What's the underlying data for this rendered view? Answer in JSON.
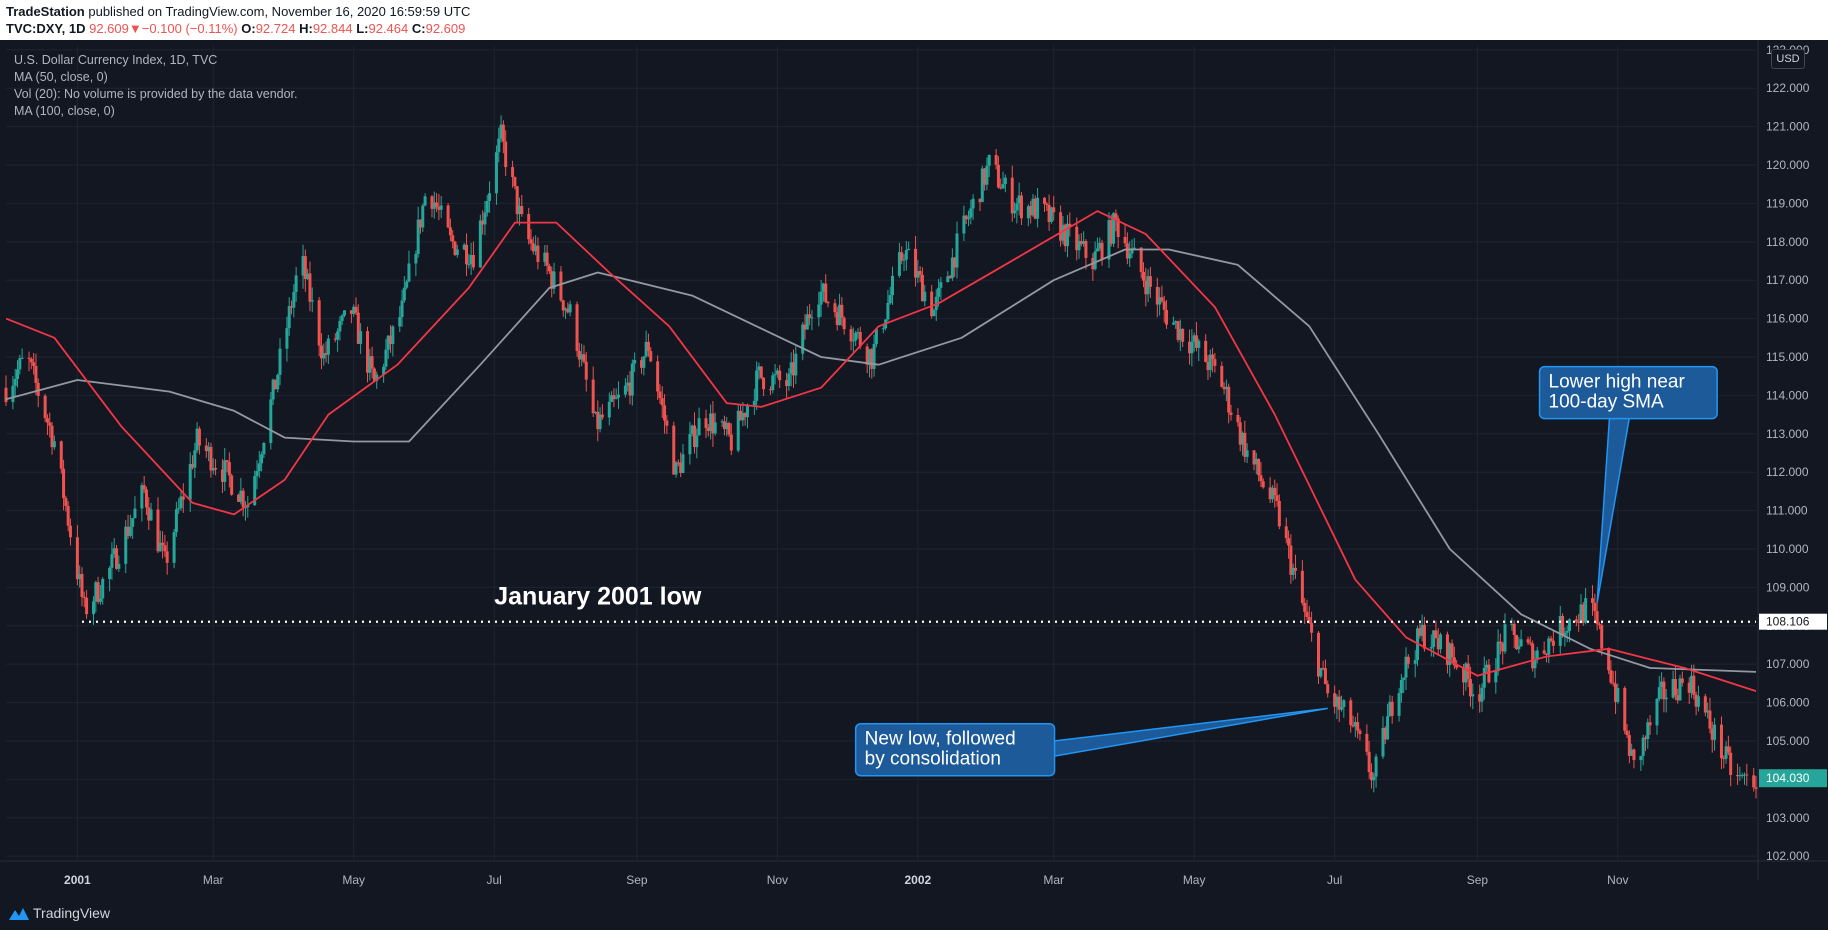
{
  "header": {
    "publisher": "TradeStation",
    "published_text": " published on TradingView.com, November 16, 2020 16:59:59 UTC",
    "symbol": "TVC:DXY, 1D",
    "last": "92.609",
    "change": "−0.100 (−0.11%)",
    "o_label": "O:",
    "o": "92.724",
    "h_label": "H:",
    "h": "92.844",
    "l_label": "L:",
    "l": "92.464",
    "c_label": "C:",
    "c": "92.609"
  },
  "legend": {
    "title": "U.S. Dollar Currency Index, 1D, TVC",
    "ma50": "MA (50, close, 0)",
    "vol": "Vol (20): No volume is provided by the data vendor.",
    "ma100": "MA (100, close, 0)"
  },
  "currency_badge": "USD",
  "footer": {
    "brand": "TradingView"
  },
  "colors": {
    "background": "#131722",
    "up": "#26a69a",
    "down": "#ef5350",
    "ma50": "#f23645",
    "ma100": "#9598a1",
    "annotation_fill": "#1c5a9a",
    "annotation_border": "#2196f3"
  },
  "chart_data": {
    "type": "candlestick",
    "y_axis": {
      "ylim": [
        101.9,
        123.1
      ],
      "ticks": [
        102,
        103,
        104,
        105,
        106,
        107,
        108,
        109,
        110,
        111,
        112,
        113,
        114,
        115,
        116,
        117,
        118,
        119,
        120,
        121,
        122,
        123
      ],
      "tick_labels": [
        "102.000",
        "103.000",
        "104.000",
        "105.000",
        "106.000",
        "107.000",
        "108.000",
        "109.000",
        "110.000",
        "111.000",
        "112.000",
        "113.000",
        "114.000",
        "115.000",
        "116.000",
        "117.000",
        "118.000",
        "119.000",
        "120.000",
        "121.000",
        "122.000",
        "123.000"
      ],
      "position": "right"
    },
    "x_axis": {
      "range": [
        "2000-12-01",
        "2002-12-31"
      ],
      "ticks": [
        {
          "date": "2001-01-01",
          "label": "2001",
          "bold": true
        },
        {
          "date": "2001-03-01",
          "label": "Mar"
        },
        {
          "date": "2001-05-01",
          "label": "May"
        },
        {
          "date": "2001-07-01",
          "label": "Jul"
        },
        {
          "date": "2001-09-01",
          "label": "Sep"
        },
        {
          "date": "2001-11-01",
          "label": "Nov"
        },
        {
          "date": "2002-01-01",
          "label": "2002",
          "bold": true
        },
        {
          "date": "2002-03-01",
          "label": "Mar"
        },
        {
          "date": "2002-05-01",
          "label": "May"
        },
        {
          "date": "2002-07-01",
          "label": "Jul"
        },
        {
          "date": "2002-09-01",
          "label": "Sep"
        },
        {
          "date": "2002-11-01",
          "label": "Nov"
        }
      ]
    },
    "grid": true,
    "price_path": [
      [
        "2000-12-01",
        114.2
      ],
      [
        "2000-12-10",
        115.0
      ],
      [
        "2000-12-22",
        112.8
      ],
      [
        "2001-01-04",
        108.4
      ],
      [
        "2001-01-14",
        109.3
      ],
      [
        "2001-01-30",
        111.5
      ],
      [
        "2001-02-08",
        109.6
      ],
      [
        "2001-02-22",
        112.8
      ],
      [
        "2001-03-06",
        112.0
      ],
      [
        "2001-03-16",
        111.2
      ],
      [
        "2001-03-28",
        114.3
      ],
      [
        "2001-04-08",
        117.6
      ],
      [
        "2001-04-18",
        115.0
      ],
      [
        "2001-04-30",
        116.2
      ],
      [
        "2001-05-10",
        114.3
      ],
      [
        "2001-05-22",
        116.2
      ],
      [
        "2001-06-02",
        119.5
      ],
      [
        "2001-06-12",
        118.0
      ],
      [
        "2001-06-22",
        117.7
      ],
      [
        "2001-07-04",
        120.7
      ],
      [
        "2001-07-14",
        118.2
      ],
      [
        "2001-07-24",
        117.3
      ],
      [
        "2001-08-04",
        116.0
      ],
      [
        "2001-08-14",
        113.2
      ],
      [
        "2001-08-26",
        114.0
      ],
      [
        "2001-09-06",
        115.3
      ],
      [
        "2001-09-18",
        112.0
      ],
      [
        "2001-09-30",
        113.5
      ],
      [
        "2001-10-12",
        112.8
      ],
      [
        "2001-10-24",
        114.5
      ],
      [
        "2001-11-06",
        114.3
      ],
      [
        "2001-11-18",
        116.8
      ],
      [
        "2001-11-30",
        116.0
      ],
      [
        "2001-12-12",
        115.0
      ],
      [
        "2001-12-26",
        117.8
      ],
      [
        "2002-01-08",
        116.2
      ],
      [
        "2002-01-20",
        118.2
      ],
      [
        "2002-02-01",
        120.0
      ],
      [
        "2002-02-12",
        119.0
      ],
      [
        "2002-02-24",
        118.8
      ],
      [
        "2002-03-06",
        118.2
      ],
      [
        "2002-03-18",
        117.5
      ],
      [
        "2002-03-28",
        118.5
      ],
      [
        "2002-04-08",
        117.2
      ],
      [
        "2002-04-20",
        116.0
      ],
      [
        "2002-05-01",
        115.3
      ],
      [
        "2002-05-12",
        114.5
      ],
      [
        "2002-05-24",
        112.5
      ],
      [
        "2002-06-06",
        111.0
      ],
      [
        "2002-06-18",
        108.3
      ],
      [
        "2002-06-28",
        106.2
      ],
      [
        "2002-07-08",
        105.5
      ],
      [
        "2002-07-18",
        104.0
      ],
      [
        "2002-07-28",
        106.5
      ],
      [
        "2002-08-08",
        107.8
      ],
      [
        "2002-08-20",
        107.3
      ],
      [
        "2002-09-01",
        106.2
      ],
      [
        "2002-09-14",
        107.8
      ],
      [
        "2002-09-26",
        107.2
      ],
      [
        "2002-10-08",
        108.0
      ],
      [
        "2002-10-20",
        108.5
      ],
      [
        "2002-10-28",
        107.0
      ],
      [
        "2002-11-08",
        104.3
      ],
      [
        "2002-11-20",
        106.2
      ],
      [
        "2002-12-02",
        106.6
      ],
      [
        "2002-12-14",
        105.0
      ],
      [
        "2002-12-22",
        104.0
      ]
    ],
    "ma50": [
      [
        "2000-12-01",
        116.0
      ],
      [
        "2000-12-22",
        115.5
      ],
      [
        "2001-01-20",
        113.2
      ],
      [
        "2001-02-20",
        111.2
      ],
      [
        "2001-03-10",
        110.9
      ],
      [
        "2001-04-01",
        111.8
      ],
      [
        "2001-04-20",
        113.5
      ],
      [
        "2001-05-20",
        114.8
      ],
      [
        "2001-06-20",
        116.8
      ],
      [
        "2001-07-10",
        118.5
      ],
      [
        "2001-07-28",
        118.5
      ],
      [
        "2001-08-20",
        117.2
      ],
      [
        "2001-09-15",
        115.8
      ],
      [
        "2001-10-10",
        113.8
      ],
      [
        "2001-10-25",
        113.7
      ],
      [
        "2001-11-20",
        114.2
      ],
      [
        "2001-12-15",
        115.8
      ],
      [
        "2002-01-10",
        116.4
      ],
      [
        "2002-02-05",
        117.3
      ],
      [
        "2002-02-25",
        118.0
      ],
      [
        "2002-03-20",
        118.8
      ],
      [
        "2002-04-10",
        118.2
      ],
      [
        "2002-05-10",
        116.3
      ],
      [
        "2002-06-05",
        113.5
      ],
      [
        "2002-07-10",
        109.2
      ],
      [
        "2002-08-01",
        107.7
      ],
      [
        "2002-09-01",
        106.7
      ],
      [
        "2002-10-01",
        107.2
      ],
      [
        "2002-10-28",
        107.4
      ],
      [
        "2002-11-30",
        106.9
      ],
      [
        "2002-12-31",
        106.3
      ]
    ],
    "ma100": [
      [
        "2000-12-01",
        113.9
      ],
      [
        "2001-01-01",
        114.4
      ],
      [
        "2001-02-10",
        114.1
      ],
      [
        "2001-03-10",
        113.6
      ],
      [
        "2001-04-01",
        112.9
      ],
      [
        "2001-05-01",
        112.8
      ],
      [
        "2001-05-25",
        112.8
      ],
      [
        "2001-06-25",
        114.8
      ],
      [
        "2001-07-25",
        116.8
      ],
      [
        "2001-08-15",
        117.2
      ],
      [
        "2001-09-25",
        116.6
      ],
      [
        "2001-10-30",
        115.6
      ],
      [
        "2001-11-20",
        115.0
      ],
      [
        "2001-12-15",
        114.8
      ],
      [
        "2002-01-20",
        115.5
      ],
      [
        "2002-03-01",
        117.0
      ],
      [
        "2002-04-01",
        117.8
      ],
      [
        "2002-04-20",
        117.8
      ],
      [
        "2002-05-20",
        117.4
      ],
      [
        "2002-06-20",
        115.8
      ],
      [
        "2002-07-20",
        113.0
      ],
      [
        "2002-08-20",
        110.0
      ],
      [
        "2002-09-20",
        108.3
      ],
      [
        "2002-10-20",
        107.4
      ],
      [
        "2002-11-15",
        106.9
      ],
      [
        "2002-12-31",
        106.8
      ]
    ],
    "ma50_label": "MA (50, close, 0)",
    "ma100_label": "MA (100, close, 0)",
    "hline": {
      "value": 108.106,
      "label": "108.106",
      "from": "2001-01-03"
    },
    "last_price": {
      "value": 104.03,
      "label": "104.030"
    },
    "annotations": [
      {
        "text": "January 2001 low",
        "date": "2001-08-15",
        "price": 108.55,
        "style": "plain"
      },
      {
        "lines": [
          "New low, followed",
          "by consolidation"
        ],
        "box_date": "2001-12-05",
        "box_price": 105.45,
        "target_date": "2002-06-28",
        "target_price": 105.85,
        "style": "callout"
      },
      {
        "lines": [
          "Lower high near",
          "100-day SMA"
        ],
        "box_date": "2002-09-28",
        "box_price": 114.75,
        "target_date": "2002-10-23",
        "target_price": 108.6,
        "style": "callout"
      }
    ]
  }
}
